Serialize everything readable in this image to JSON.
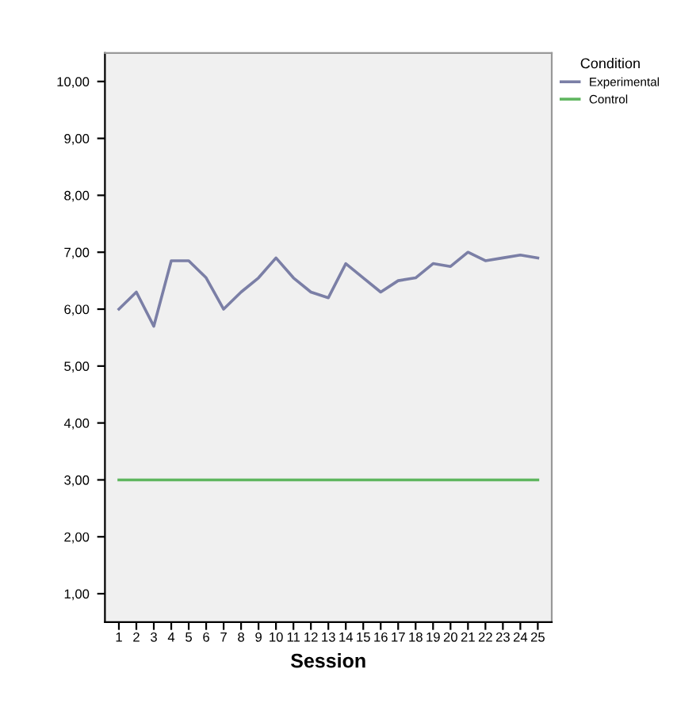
{
  "chart_data": {
    "type": "line",
    "xlabel": "Session",
    "categories": [
      "1",
      "2",
      "3",
      "4",
      "5",
      "6",
      "7",
      "8",
      "9",
      "10",
      "11",
      "12",
      "13",
      "14",
      "15",
      "16",
      "17",
      "18",
      "19",
      "20",
      "21",
      "22",
      "23",
      "24",
      "25"
    ],
    "series": [
      {
        "name": "Experimental",
        "color": "#7b7fa6",
        "values": [
          6.0,
          6.3,
          5.7,
          6.85,
          6.85,
          6.55,
          6.0,
          6.3,
          6.55,
          6.9,
          6.55,
          6.3,
          6.2,
          6.8,
          6.55,
          6.3,
          6.5,
          6.55,
          6.8,
          6.75,
          7.0,
          6.85,
          6.9,
          6.95,
          6.9
        ]
      },
      {
        "name": "Control",
        "color": "#5fb65f",
        "values": [
          3,
          3,
          3,
          3,
          3,
          3,
          3,
          3,
          3,
          3,
          3,
          3,
          3,
          3,
          3,
          3,
          3,
          3,
          3,
          3,
          3,
          3,
          3,
          3,
          3
        ]
      }
    ],
    "legend_title": "Condition",
    "legend": "top right",
    "grid": false,
    "marker": "none",
    "line_style": "solid",
    "ylim": [
      0.5,
      10.5
    ],
    "yticks": [
      {
        "value": 1,
        "label": "1,00"
      },
      {
        "value": 2,
        "label": "2,00"
      },
      {
        "value": 3,
        "label": "3,00"
      },
      {
        "value": 4,
        "label": "4,00"
      },
      {
        "value": 5,
        "label": "5,00"
      },
      {
        "value": 6,
        "label": "6,00"
      },
      {
        "value": 7,
        "label": "7,00"
      },
      {
        "value": 8,
        "label": "8,00"
      },
      {
        "value": 9,
        "label": "9,00"
      },
      {
        "value": 10,
        "label": "10,00"
      }
    ]
  }
}
